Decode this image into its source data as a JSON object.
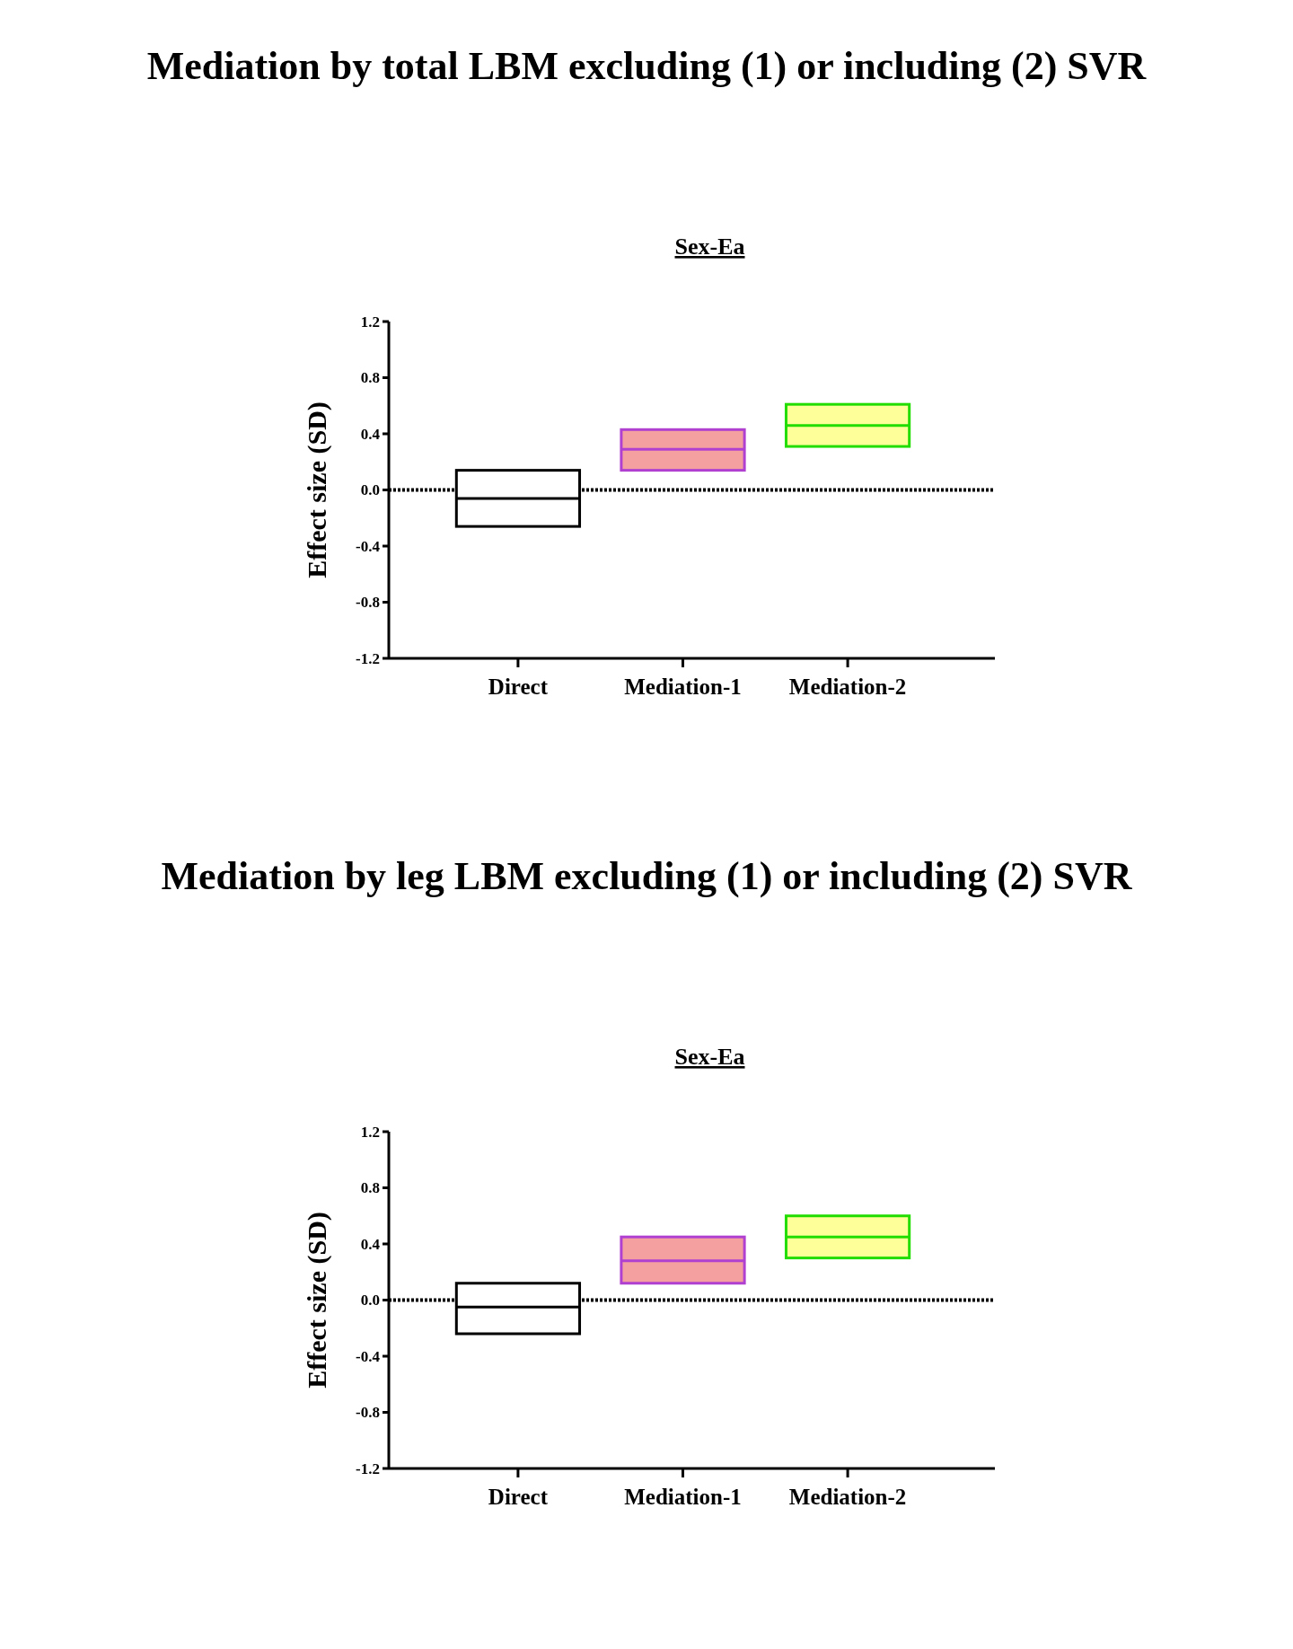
{
  "chart_data": [
    {
      "type": "box",
      "title": "Mediation by total LBM excluding (1)   or including (2) SVR",
      "subtitle": "Sex-Ea",
      "ylabel": "Effect size (SD)",
      "categories": [
        "Direct",
        "Mediation-1",
        "Mediation-2"
      ],
      "boxes": [
        {
          "low": -0.26,
          "q1": -0.26,
          "median": -0.06,
          "q3": 0.14,
          "high": 0.14
        },
        {
          "low": 0.14,
          "q1": 0.14,
          "median": 0.29,
          "q3": 0.43,
          "high": 0.43
        },
        {
          "low": 0.31,
          "q1": 0.31,
          "median": 0.46,
          "q3": 0.61,
          "high": 0.61
        }
      ],
      "colors": [
        "#ffffff",
        "#f4a0a0",
        "#ffff99"
      ],
      "ylim": [
        -1.2,
        1.2
      ],
      "yticks": [
        -1.2,
        -0.8,
        -0.4,
        {
          "value": 0,
          "label": "0.0"
        },
        0.4,
        0.8,
        1.2
      ],
      "ref_lines": [
        {
          "axis": "y",
          "value": 0,
          "line_style": "dotted"
        }
      ]
    },
    {
      "type": "box",
      "title": "Mediation by leg LBM excluding (1) or including (2) SVR",
      "subtitle": "Sex-Ea",
      "ylabel": "Effect size (SD)",
      "categories": [
        "Direct",
        "Mediation-1",
        "Mediation-2"
      ],
      "boxes": [
        {
          "low": -0.24,
          "q1": -0.24,
          "median": -0.05,
          "q3": 0.12,
          "high": 0.12
        },
        {
          "low": 0.12,
          "q1": 0.12,
          "median": 0.28,
          "q3": 0.45,
          "high": 0.45
        },
        {
          "low": 0.3,
          "q1": 0.3,
          "median": 0.45,
          "q3": 0.6,
          "high": 0.6
        }
      ],
      "colors": [
        "#ffffff",
        "#f4a0a0",
        "#ffff99"
      ],
      "ylim": [
        -1.2,
        1.2
      ],
      "yticks": [
        -1.2,
        -0.8,
        -0.4,
        {
          "value": 0,
          "label": "0.0"
        },
        0.4,
        0.8,
        1.2
      ],
      "ref_lines": [
        {
          "axis": "y",
          "value": 0,
          "line_style": "dotted"
        }
      ]
    }
  ]
}
